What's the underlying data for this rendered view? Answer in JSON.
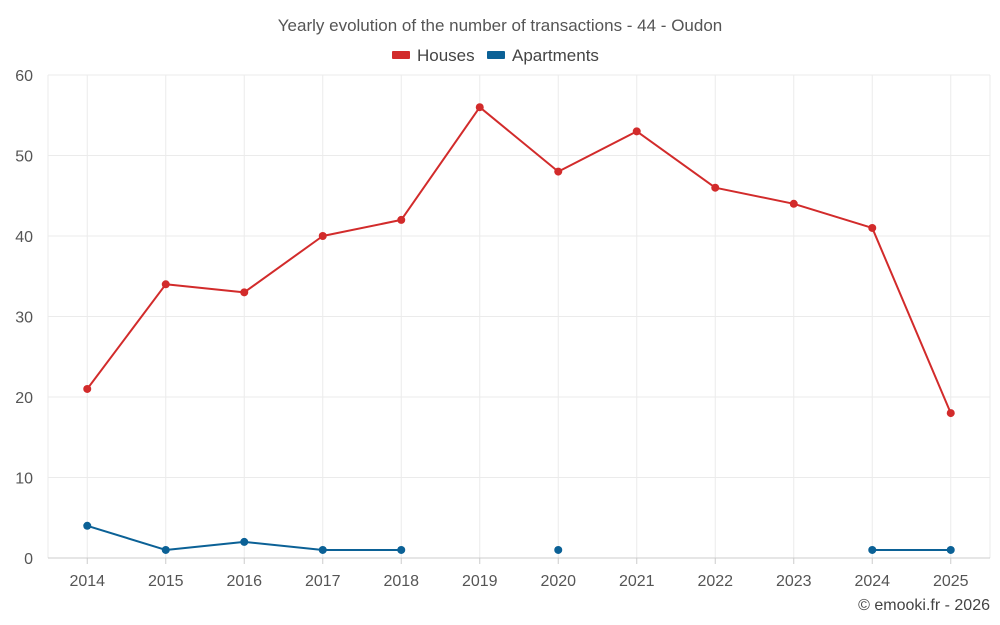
{
  "chart_data": {
    "type": "line",
    "title": "Yearly evolution of the number of transactions - 44 - Oudon",
    "categories": [
      "2014",
      "2015",
      "2016",
      "2017",
      "2018",
      "2019",
      "2020",
      "2021",
      "2022",
      "2023",
      "2024",
      "2025"
    ],
    "ylim": [
      0,
      60
    ],
    "yticks": [
      0,
      10,
      20,
      30,
      40,
      50,
      60
    ],
    "grid": true,
    "legend_position": "top-center",
    "series": [
      {
        "name": "Houses",
        "color": "#d22b2b",
        "values": [
          21,
          34,
          33,
          40,
          42,
          56,
          48,
          53,
          46,
          44,
          41,
          18
        ]
      },
      {
        "name": "Apartments",
        "color": "#0b6196",
        "values": [
          4,
          1,
          2,
          1,
          1,
          null,
          1,
          null,
          null,
          null,
          1,
          1
        ]
      }
    ],
    "credit": "© emooki.fr - 2026"
  }
}
